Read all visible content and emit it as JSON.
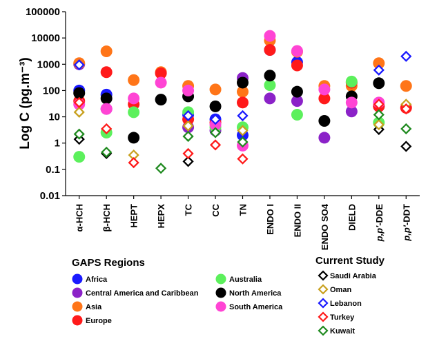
{
  "chart_data": {
    "type": "scatter",
    "ylabel": "Log C (pg.m⁻³)",
    "yscale": "log",
    "ylim": [
      0.01,
      100000
    ],
    "y_ticks": [
      "0.01",
      "0.1",
      "1",
      "10",
      "100",
      "1000",
      "10000",
      "100000"
    ],
    "categories": [
      "α-HCH",
      "β-HCH",
      "HEPT",
      "HEPX",
      "TC",
      "CC",
      "TN",
      "ENDO I",
      "ENDO II",
      "ENDO SO4",
      "DIELD",
      "p,p'-DDE",
      "p,p'-DDT"
    ],
    "legend_groups": [
      {
        "title": "GAPS Regions",
        "entries": [
          "Africa",
          "Central America and Caribbean",
          "Asia",
          "Europe",
          "Australia",
          "North America",
          "South America"
        ]
      },
      {
        "title": "Current Study",
        "entries": [
          "Saudi Arabia",
          "Oman",
          "Lebanon",
          "Turkey",
          "Kuwait"
        ]
      }
    ],
    "series": [
      {
        "name": "Africa",
        "group": "GAPS Regions",
        "marker": "circle",
        "color": "#1a1aff",
        "values": [
          100,
          70,
          null,
          null,
          12,
          8,
          2,
          3500,
          1200,
          null,
          null,
          null,
          null
        ]
      },
      {
        "name": "Central America and Caribbean",
        "group": "GAPS Regions",
        "marker": "circle",
        "color": "#8b22c8",
        "values": [
          1000,
          20,
          null,
          null,
          4,
          3,
          300,
          50,
          40,
          1.6,
          16,
          25,
          null
        ]
      },
      {
        "name": "Asia",
        "group": "GAPS Regions",
        "marker": "circle",
        "color": "#ff7518",
        "values": [
          1100,
          3100,
          250,
          500,
          150,
          110,
          90,
          8000,
          3000,
          150,
          150,
          1100,
          150
        ]
      },
      {
        "name": "Europe",
        "group": "GAPS Regions",
        "marker": "circle",
        "color": "#ff1a1a",
        "values": [
          40,
          500,
          30,
          450,
          8,
          6,
          35,
          3500,
          900,
          50,
          200,
          25,
          22
        ]
      },
      {
        "name": "Australia",
        "group": "GAPS Regions",
        "marker": "circle",
        "color": "#5cf05c",
        "values": [
          0.3,
          2.5,
          15,
          null,
          15,
          4,
          4,
          160,
          12,
          null,
          220,
          6,
          null
        ]
      },
      {
        "name": "North America",
        "group": "GAPS Regions",
        "marker": "circle",
        "color": "#000000",
        "values": [
          80,
          50,
          1.6,
          45,
          60,
          25,
          200,
          370,
          90,
          7,
          60,
          190,
          null
        ]
      },
      {
        "name": "South America",
        "group": "GAPS Regions",
        "marker": "circle",
        "color": "#ff44d4",
        "values": [
          30,
          20,
          50,
          200,
          100,
          5,
          0.8,
          12000,
          3200,
          110,
          35,
          35,
          null
        ]
      },
      {
        "name": "Saudi Arabia",
        "group": "Current Study",
        "marker": "diamond",
        "color": "#000000",
        "values": [
          1.4,
          0.4,
          null,
          null,
          0.2,
          null,
          null,
          null,
          null,
          null,
          null,
          3.3,
          0.75
        ]
      },
      {
        "name": "Oman",
        "group": "Current Study",
        "marker": "diamond",
        "color": "#c8a01e",
        "values": [
          15,
          null,
          0.35,
          null,
          4.5,
          null,
          3,
          null,
          null,
          null,
          null,
          5,
          30
        ]
      },
      {
        "name": "Lebanon",
        "group": "Current Study",
        "marker": "diamond",
        "color": "#1a1aff",
        "values": [
          950,
          null,
          null,
          null,
          11,
          8,
          11,
          null,
          null,
          null,
          null,
          600,
          2000
        ]
      },
      {
        "name": "Turkey",
        "group": "Current Study",
        "marker": "diamond",
        "color": "#ff1a1a",
        "values": [
          35,
          3.5,
          0.18,
          null,
          0.4,
          0.85,
          0.25,
          null,
          null,
          null,
          null,
          30,
          20
        ]
      },
      {
        "name": "Kuwait",
        "group": "Current Study",
        "marker": "diamond",
        "color": "#1f8a1f",
        "values": [
          2.2,
          0.45,
          null,
          0.11,
          1.8,
          2.5,
          1.1,
          null,
          null,
          null,
          null,
          12,
          3.5
        ]
      }
    ]
  }
}
